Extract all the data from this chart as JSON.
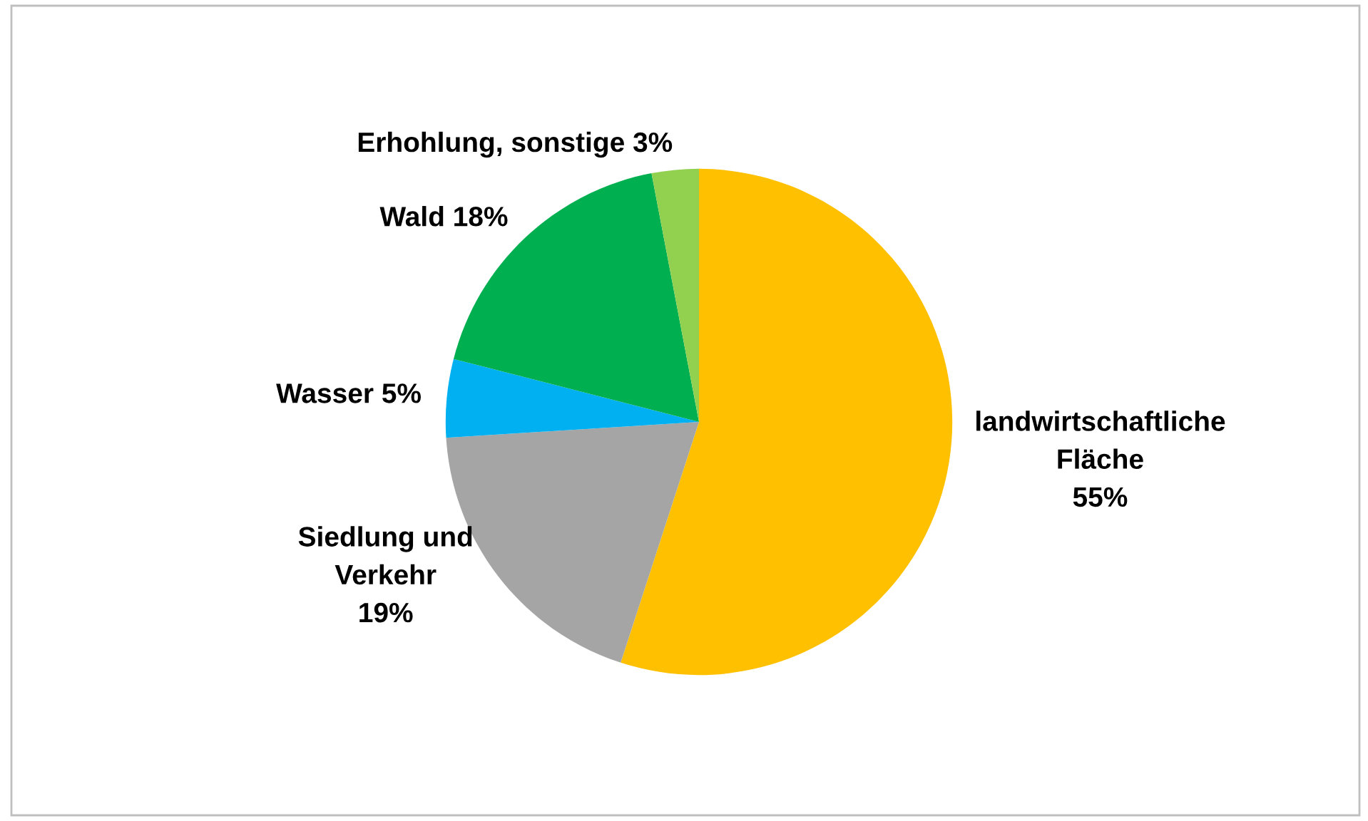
{
  "chart_data": {
    "type": "pie",
    "categories": [
      "landwirtschaftliche\nFläche",
      "Siedlung und\nVerkehr",
      "Wasser",
      "Wald",
      "Erhohlung, sonstige"
    ],
    "values": [
      55,
      19,
      5,
      18,
      3
    ],
    "value_labels": [
      "55%",
      "19%",
      "5%",
      "18%",
      "3%"
    ],
    "colors": [
      "#ffc000",
      "#a5a5a5",
      "#00b0f0",
      "#00b050",
      "#92d050"
    ],
    "legend": false
  }
}
